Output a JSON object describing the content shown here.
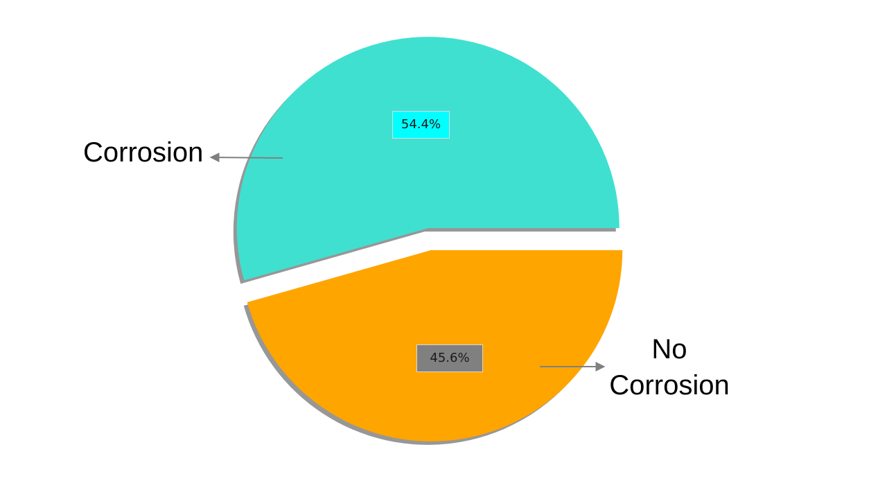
{
  "chart_data": {
    "type": "pie",
    "slices": [
      {
        "label": "Corrosion",
        "value": 54.4,
        "percent_label": "54.4%",
        "color": "#40E0D0",
        "label_box_color": "#00FFFF"
      },
      {
        "label": "No Corrosion",
        "value": 45.6,
        "percent_label": "45.6%",
        "color": "#FFA500",
        "label_box_color": "#808080"
      }
    ],
    "exploded": true,
    "shadow": true,
    "shadow_color": "#8C8C8C",
    "label_arrows": true,
    "arrow_color": "#808080"
  },
  "labels": {
    "corrosion": "Corrosion",
    "no_corrosion_line1": "No",
    "no_corrosion_line2": "Corrosion"
  }
}
